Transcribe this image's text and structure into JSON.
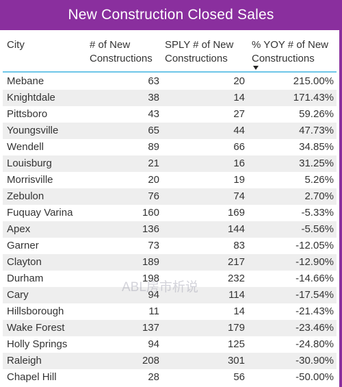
{
  "title": "New Construction Closed Sales",
  "columns": {
    "city": "City",
    "new_line1": "# of New",
    "new_line2": "Constructions",
    "sply_line1": "SPLY # of New",
    "sply_line2": "Constructions",
    "yoy_line1": "% YOY # of New",
    "yoy_line2": "Constructions"
  },
  "sort_icon": "sort-descending-icon",
  "rows": [
    {
      "city": "Mebane",
      "new": "63",
      "sply": "20",
      "yoy": "215.00%"
    },
    {
      "city": "Knightdale",
      "new": "38",
      "sply": "14",
      "yoy": "171.43%"
    },
    {
      "city": "Pittsboro",
      "new": "43",
      "sply": "27",
      "yoy": "59.26%"
    },
    {
      "city": "Youngsville",
      "new": "65",
      "sply": "44",
      "yoy": "47.73%"
    },
    {
      "city": "Wendell",
      "new": "89",
      "sply": "66",
      "yoy": "34.85%"
    },
    {
      "city": "Louisburg",
      "new": "21",
      "sply": "16",
      "yoy": "31.25%"
    },
    {
      "city": "Morrisville",
      "new": "20",
      "sply": "19",
      "yoy": "5.26%"
    },
    {
      "city": "Zebulon",
      "new": "76",
      "sply": "74",
      "yoy": "2.70%"
    },
    {
      "city": "Fuquay Varina",
      "new": "160",
      "sply": "169",
      "yoy": "-5.33%"
    },
    {
      "city": "Apex",
      "new": "136",
      "sply": "144",
      "yoy": "-5.56%"
    },
    {
      "city": "Garner",
      "new": "73",
      "sply": "83",
      "yoy": "-12.05%"
    },
    {
      "city": "Clayton",
      "new": "189",
      "sply": "217",
      "yoy": "-12.90%"
    },
    {
      "city": "Durham",
      "new": "198",
      "sply": "232",
      "yoy": "-14.66%"
    },
    {
      "city": "Cary",
      "new": "94",
      "sply": "114",
      "yoy": "-17.54%"
    },
    {
      "city": "Hillsborough",
      "new": "11",
      "sply": "14",
      "yoy": "-21.43%"
    },
    {
      "city": "Wake Forest",
      "new": "137",
      "sply": "179",
      "yoy": "-23.46%"
    },
    {
      "city": "Holly Springs",
      "new": "94",
      "sply": "125",
      "yoy": "-24.80%"
    },
    {
      "city": "Raleigh",
      "new": "208",
      "sply": "301",
      "yoy": "-30.90%"
    },
    {
      "city": "Chapel Hill",
      "new": "28",
      "sply": "56",
      "yoy": "-50.00%"
    }
  ],
  "watermark": "ABL房市析说",
  "colors": {
    "title_bg": "#8a2f9e",
    "header_rule": "#6ec6e8",
    "alt_row": "#eeeeee"
  }
}
